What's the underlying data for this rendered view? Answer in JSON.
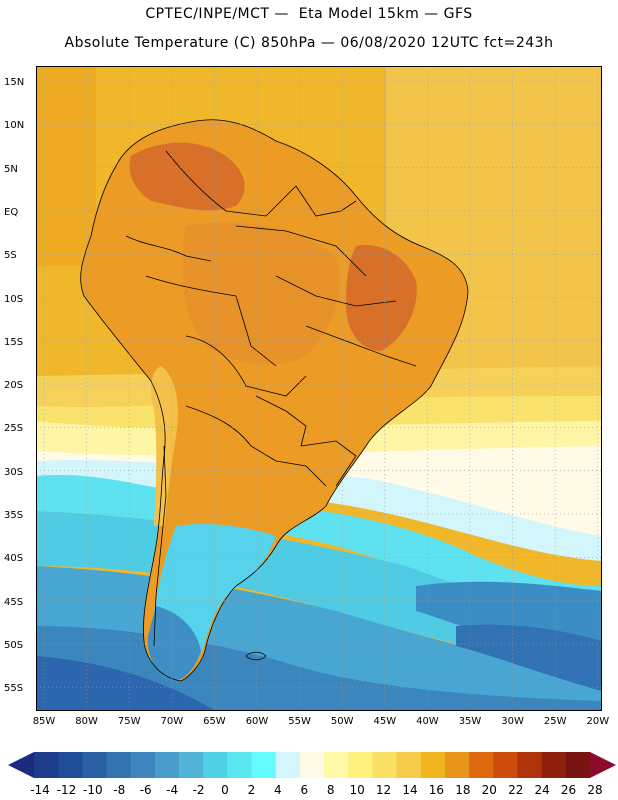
{
  "title": {
    "line1": "CPTEC/INPE/MCT —  Eta Model 15km — GFS",
    "line2": "Absolute Temperature (C) 850hPa — 06/08/2020 12UTC fct=243h"
  },
  "lat_labels": [
    "15N",
    "10N",
    "5N",
    "EQ",
    "5S",
    "10S",
    "15S",
    "20S",
    "25S",
    "30S",
    "35S",
    "40S",
    "45S",
    "50S",
    "55S"
  ],
  "lon_labels": [
    "85W",
    "80W",
    "75W",
    "70W",
    "65W",
    "60W",
    "55W",
    "50W",
    "45W",
    "40W",
    "35W",
    "30W",
    "25W",
    "20W"
  ],
  "colorbar": {
    "labels": [
      "-14",
      "-12",
      "-10",
      "-8",
      "-6",
      "-4",
      "-2",
      "0",
      "2",
      "4",
      "6",
      "8",
      "10",
      "12",
      "14",
      "16",
      "18",
      "20",
      "22",
      "24",
      "26",
      "28"
    ],
    "colors": [
      "#1e3c8c",
      "#1f4c97",
      "#2960a4",
      "#3373b2",
      "#3e86bd",
      "#4a9dcb",
      "#52b5d8",
      "#4fd0e4",
      "#5ae6ef",
      "#64fbfd",
      "#d3f5fc",
      "#fffbe6",
      "#fff9a8",
      "#fff17e",
      "#f9e064",
      "#f4cc4a",
      "#f0b51f",
      "#e8951c",
      "#de6a10",
      "#cc4b0d",
      "#b0330c",
      "#8e200d",
      "#781511"
    ],
    "left_arrow": "#1c2b7e",
    "right_arrow": "#8b0c2a"
  },
  "palette": {
    "deep_blue": "#2a64ae",
    "mid_blue": "#3f8fc5",
    "light_blue": "#5bbbe0",
    "cyan": "#60e0f0",
    "pale_cyan": "#cff4fb",
    "cream": "#fffbe6",
    "pale_yellow": "#fff6a6",
    "yellow": "#f7df60",
    "ochre": "#f2c44a",
    "orange": "#eeac1f",
    "dark_orange": "#e69020",
    "red_orange": "#d86a1c"
  }
}
